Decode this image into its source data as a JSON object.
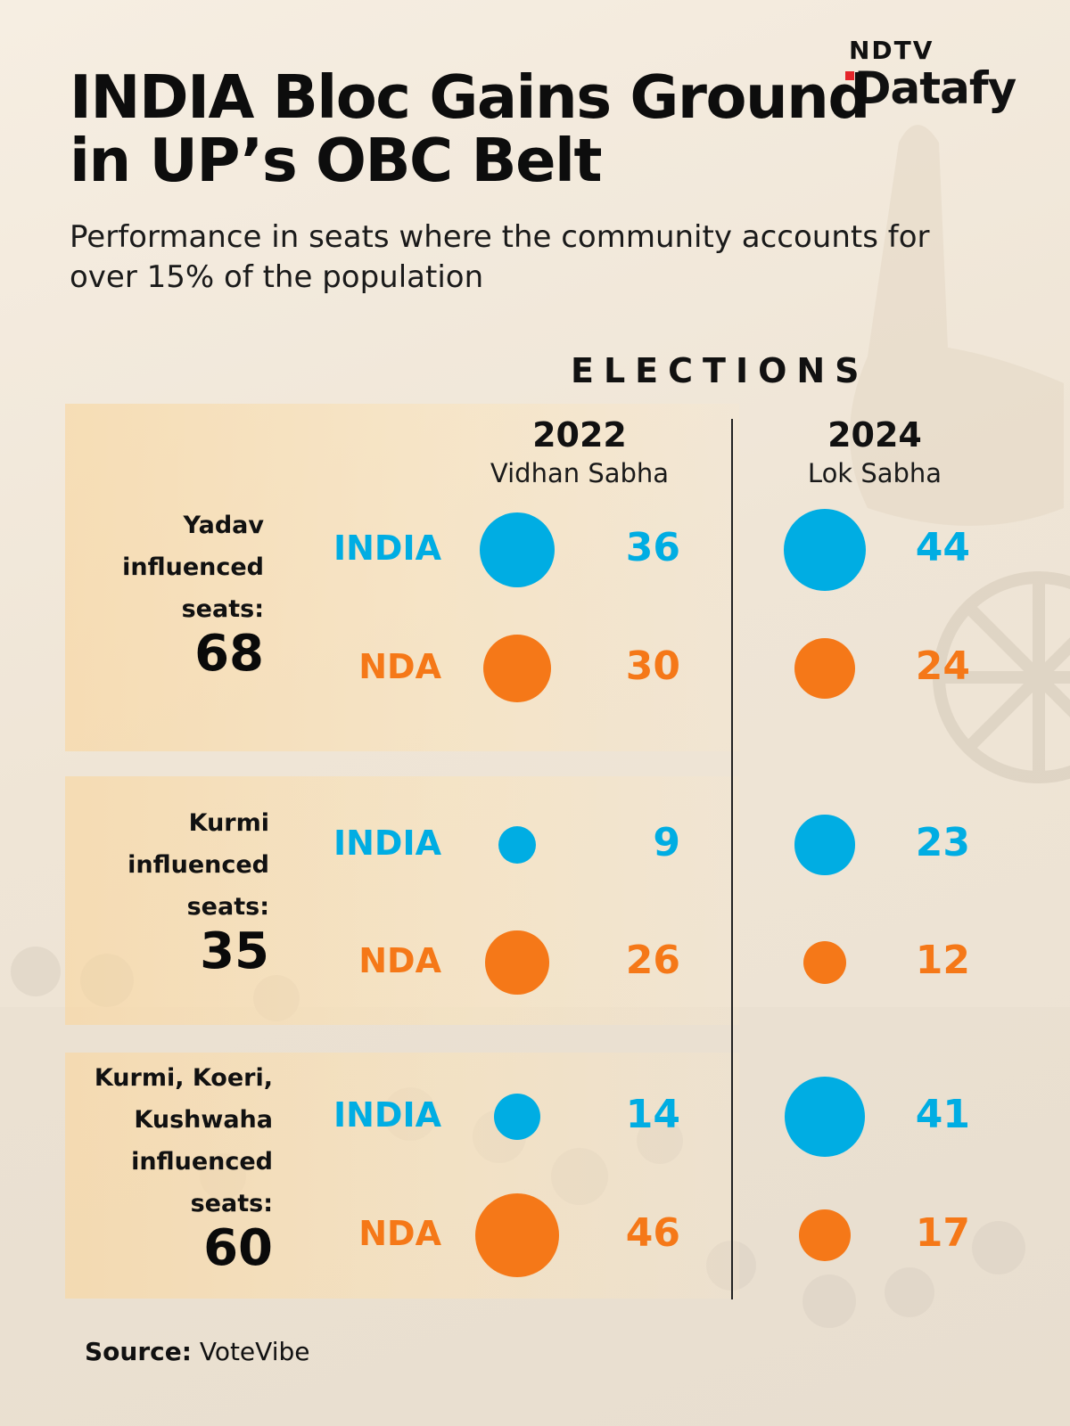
{
  "brand": {
    "top": "NDTV",
    "name": "Datafy"
  },
  "title": "INDIA Bloc Gains Ground in UP’s OBC Belt",
  "subtitle": "Performance in seats where the community accounts for over 15% of the population",
  "source": {
    "label": "Source:",
    "value": "VoteVibe"
  },
  "colors": {
    "india": "#00ade3",
    "nda": "#f57818",
    "divider": "#222222"
  },
  "chart_data": {
    "type": "bubble-table",
    "header": "ELECTIONS",
    "columns": [
      {
        "year": "2022",
        "house": "Vidhan Sabha"
      },
      {
        "year": "2024",
        "house": "Lok Sabha"
      }
    ],
    "series": [
      {
        "name": "INDIA",
        "color": "#00ade3"
      },
      {
        "name": "NDA",
        "color": "#f57818"
      }
    ],
    "groups": [
      {
        "label_lines": [
          "Yadav",
          "influenced",
          "seats:"
        ],
        "total": "68",
        "values": {
          "INDIA": [
            36,
            44
          ],
          "NDA": [
            30,
            24
          ]
        }
      },
      {
        "label_lines": [
          "Kurmi",
          "influenced",
          "seats:"
        ],
        "total": "35",
        "values": {
          "INDIA": [
            9,
            23
          ],
          "NDA": [
            26,
            12
          ]
        }
      },
      {
        "label_lines": [
          "Kurmi, Koeri,",
          "Kushwaha",
          "influenced",
          "seats:"
        ],
        "total": "60",
        "values": {
          "INDIA": [
            14,
            41
          ],
          "NDA": [
            46,
            17
          ]
        }
      }
    ]
  }
}
